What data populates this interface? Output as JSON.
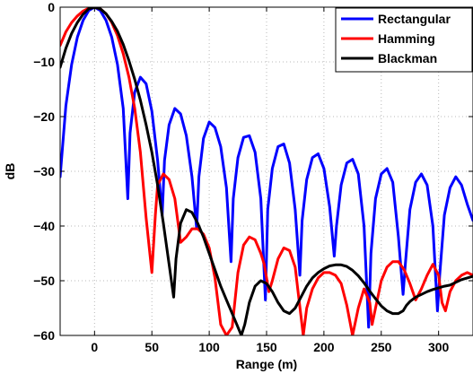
{
  "chart_data": {
    "type": "line",
    "title": "",
    "xlabel": "Range (m)",
    "ylabel": "dB",
    "xlim": [
      -30,
      330
    ],
    "ylim": [
      -60,
      0
    ],
    "xticks": [
      0,
      50,
      100,
      150,
      200,
      250,
      300
    ],
    "yticks": [
      0,
      -10,
      -20,
      -30,
      -40,
      -50,
      -60
    ],
    "grid": true,
    "legend_position": "top-right",
    "series": [
      {
        "name": "Rectangular",
        "color": "#0000ff",
        "x": [
          -30,
          -25,
          -20,
          -15,
          -10,
          -5,
          0,
          5,
          10,
          15,
          20,
          25,
          29,
          31,
          35,
          40,
          45,
          50,
          55,
          59,
          61,
          65,
          70,
          75,
          80,
          85,
          89,
          91,
          95,
          100,
          105,
          110,
          115,
          119,
          121,
          125,
          130,
          135,
          140,
          145,
          149,
          151,
          155,
          160,
          165,
          170,
          175,
          179,
          181,
          185,
          190,
          195,
          200,
          205,
          209,
          211,
          215,
          220,
          225,
          230,
          235,
          239,
          241,
          245,
          250,
          255,
          260,
          265,
          269,
          271,
          275,
          280,
          285,
          290,
          295,
          299,
          301,
          305,
          310,
          315,
          320,
          325,
          330
        ],
        "y": [
          -31,
          -18,
          -10.5,
          -5.5,
          -2.4,
          -0.6,
          0,
          -0.6,
          -2.4,
          -5.5,
          -10.5,
          -18.5,
          -35,
          -23,
          -15.5,
          -12.8,
          -14,
          -19,
          -28,
          -38,
          -28,
          -21.5,
          -18.5,
          -19.5,
          -23.5,
          -31,
          -40.5,
          -31,
          -24,
          -21,
          -22,
          -25.5,
          -33,
          -46.5,
          -35,
          -27.5,
          -23.8,
          -23.5,
          -26.5,
          -35,
          -53.5,
          -37,
          -29.5,
          -25.5,
          -25,
          -28.5,
          -37,
          -49,
          -39,
          -31.5,
          -27.5,
          -26.8,
          -29.5,
          -36.5,
          -45.5,
          -40,
          -32.5,
          -28.5,
          -27.8,
          -30.5,
          -40,
          -58.5,
          -45,
          -35,
          -30.5,
          -29.5,
          -32,
          -42,
          -52.5,
          -47,
          -37,
          -32,
          -30.5,
          -32.5,
          -40,
          -55.5,
          -49,
          -38,
          -33,
          -31,
          -32.5,
          -36,
          -39
        ]
      },
      {
        "name": "Hamming",
        "color": "#ff0000",
        "x": [
          -30,
          -25,
          -20,
          -15,
          -10,
          -5,
          0,
          5,
          10,
          15,
          20,
          25,
          30,
          35,
          40,
          45,
          50,
          51,
          53,
          55,
          60,
          65,
          70,
          75,
          80,
          85,
          90,
          95,
          100,
          105,
          110,
          115,
          120,
          125,
          130,
          135,
          140,
          145,
          148,
          152,
          155,
          160,
          165,
          170,
          175,
          178,
          182,
          185,
          190,
          195,
          200,
          205,
          210,
          215,
          220,
          225,
          230,
          235,
          240,
          242,
          245,
          250,
          255,
          260,
          265,
          270,
          275,
          280,
          285,
          290,
          295,
          300,
          303,
          306,
          310,
          315,
          320,
          325,
          330
        ],
        "y": [
          -7,
          -4.5,
          -2.8,
          -1.6,
          -0.7,
          -0.2,
          0,
          -0.3,
          -1.2,
          -2.8,
          -5.2,
          -8.5,
          -12.8,
          -18.5,
          -26.5,
          -38.5,
          -48.5,
          -45,
          -38,
          -32.5,
          -30.5,
          -31.5,
          -35,
          -43,
          -42,
          -40.5,
          -40.5,
          -41.5,
          -44,
          -49.5,
          -58,
          -60,
          -58.5,
          -48.5,
          -43.5,
          -42,
          -42.5,
          -45,
          -47,
          -52,
          -50,
          -46,
          -44,
          -44.5,
          -47.5,
          -53,
          -60,
          -55,
          -51.5,
          -49.5,
          -48.5,
          -48.5,
          -49,
          -50.5,
          -54.5,
          -60,
          -55,
          -51.5,
          -54,
          -58,
          -55,
          -50,
          -47.5,
          -46.5,
          -46.5,
          -48,
          -50.5,
          -53.5,
          -51.5,
          -49,
          -47,
          -49,
          -54,
          -55.5,
          -52,
          -50,
          -49,
          -48.5,
          -49
        ]
      },
      {
        "name": "Blackman",
        "color": "#000000",
        "x": [
          -30,
          -25,
          -20,
          -15,
          -10,
          -5,
          0,
          5,
          10,
          15,
          20,
          25,
          30,
          35,
          40,
          45,
          50,
          55,
          60,
          65,
          69,
          71,
          75,
          80,
          85,
          90,
          95,
          100,
          105,
          110,
          115,
          120,
          125,
          128,
          131,
          135,
          140,
          145,
          150,
          155,
          160,
          165,
          170,
          175,
          180,
          185,
          190,
          195,
          200,
          205,
          210,
          215,
          220,
          225,
          230,
          235,
          240,
          245,
          250,
          255,
          260,
          265,
          269,
          272,
          275,
          280,
          285,
          290,
          295,
          300,
          305,
          310,
          315,
          320,
          325,
          330
        ],
        "y": [
          -11,
          -7.5,
          -4.8,
          -2.8,
          -1.3,
          -0.3,
          0,
          -0.3,
          -1.2,
          -2.6,
          -4.4,
          -6.8,
          -9.8,
          -13.2,
          -17,
          -21.5,
          -26.5,
          -32.5,
          -39.5,
          -47,
          -53,
          -46,
          -39.5,
          -37,
          -37.5,
          -39.5,
          -42,
          -45,
          -48,
          -51,
          -53.5,
          -56,
          -58.5,
          -60,
          -58,
          -54,
          -51,
          -50,
          -50.5,
          -52,
          -54,
          -55.5,
          -56,
          -55,
          -53,
          -51,
          -49.5,
          -48.5,
          -47.8,
          -47.3,
          -47.1,
          -47.1,
          -47.4,
          -48.1,
          -49.1,
          -50.4,
          -51.9,
          -53.3,
          -54.6,
          -55.5,
          -56,
          -56,
          -55.5,
          -54.5,
          -53.8,
          -53,
          -52.5,
          -52,
          -51.6,
          -51.3,
          -51,
          -50.8,
          -50.3,
          -49.8,
          -49.5,
          -49.2
        ]
      }
    ]
  }
}
